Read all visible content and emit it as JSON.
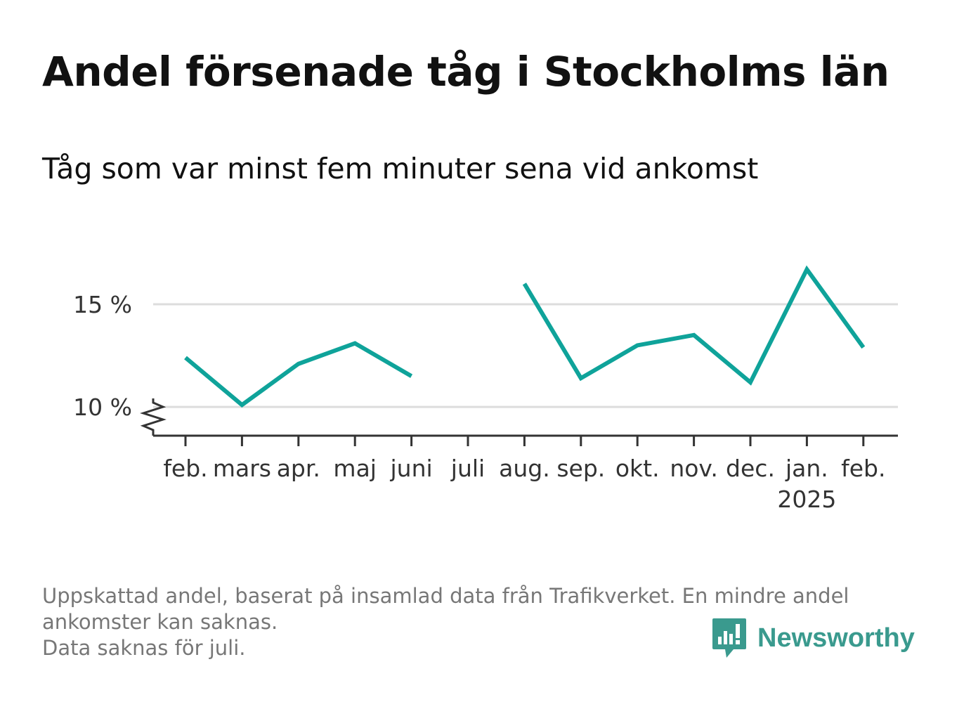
{
  "title": "Andel försenade tåg i Stockholms län",
  "subtitle": "Tåg som var minst fem minuter sena vid ankomst",
  "footnote": {
    "line1": "Uppskattad andel, baserat på insamlad data från Trafikverket. En mindre andel",
    "line2": "ankomster kan saknas.",
    "line3": "Data saknas för juli."
  },
  "brand": {
    "name": "Newsworthy",
    "icon": "newsworthy-logo-icon",
    "color": "#3a9a8e"
  },
  "colors": {
    "line": "#0fa39a",
    "grid": "#dddddd",
    "axis": "#333333"
  },
  "chart_data": {
    "type": "line",
    "title": "Andel försenade tåg i Stockholms län",
    "subtitle": "Tåg som var minst fem minuter sena vid ankomst",
    "categories": [
      "feb.",
      "mars",
      "apr.",
      "maj",
      "juni",
      "juli",
      "aug.",
      "sep.",
      "okt.",
      "nov.",
      "dec.",
      "jan.",
      "feb."
    ],
    "category_sublabels": {
      "11": "2025"
    },
    "values": [
      12.4,
      10.1,
      12.1,
      13.1,
      11.5,
      null,
      16.0,
      11.4,
      13.0,
      13.5,
      11.2,
      16.7,
      12.9
    ],
    "yticks": [
      10,
      15
    ],
    "ytick_labels": [
      "10 %",
      "15 %"
    ],
    "ylim": [
      8.6,
      17.5
    ],
    "y_axis_break": true,
    "grid": true,
    "legend": "none",
    "xlabel": "",
    "ylabel": ""
  }
}
